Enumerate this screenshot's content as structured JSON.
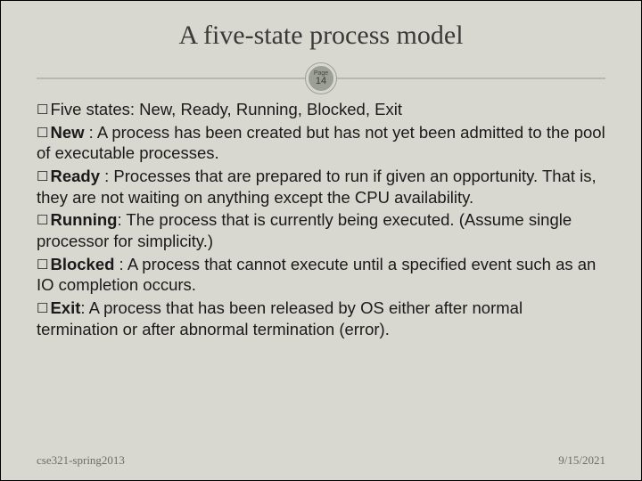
{
  "title": "A five-state process model",
  "page_badge": {
    "label": "Page",
    "number": "14"
  },
  "colors": {
    "background": "#d8d8d0",
    "title_color": "#3a3a38",
    "divider_color": "#b8b8ae",
    "badge_bg": "#9aa094",
    "body_color": "#1a1a1a",
    "footer_color": "#6b7060"
  },
  "typography": {
    "title_fontsize": 30,
    "body_fontsize": 18.5,
    "footer_fontsize": 13,
    "title_family": "Georgia, serif",
    "body_family": "Arial, Helvetica, sans-serif"
  },
  "bullets": [
    {
      "lead": "Five states:",
      "text": " New,  Ready,  Running,  Blocked,  Exit",
      "lead_bold": false
    },
    {
      "lead": "New",
      "text": " :  A process has been created but has not yet been admitted to the pool of executable processes.",
      "lead_bold": true
    },
    {
      "lead": "Ready",
      "text": " : Processes that are prepared to run if given an opportunity. That is, they are not waiting on anything except the CPU availability.",
      "lead_bold": true
    },
    {
      "lead": "Running",
      "text": ": The process that is currently being executed. (Assume single processor for simplicity.)",
      "lead_bold": true
    },
    {
      "lead": "Blocked",
      "text": " : A process that cannot execute until a specified event such as an IO completion occurs.",
      "lead_bold": true
    },
    {
      "lead": "Exit",
      "text": ": A process that has been released by OS either after normal termination or after abnormal termination (error).",
      "lead_bold": true
    }
  ],
  "footer": {
    "left": "cse321-spring2013",
    "right": "9/15/2021"
  }
}
